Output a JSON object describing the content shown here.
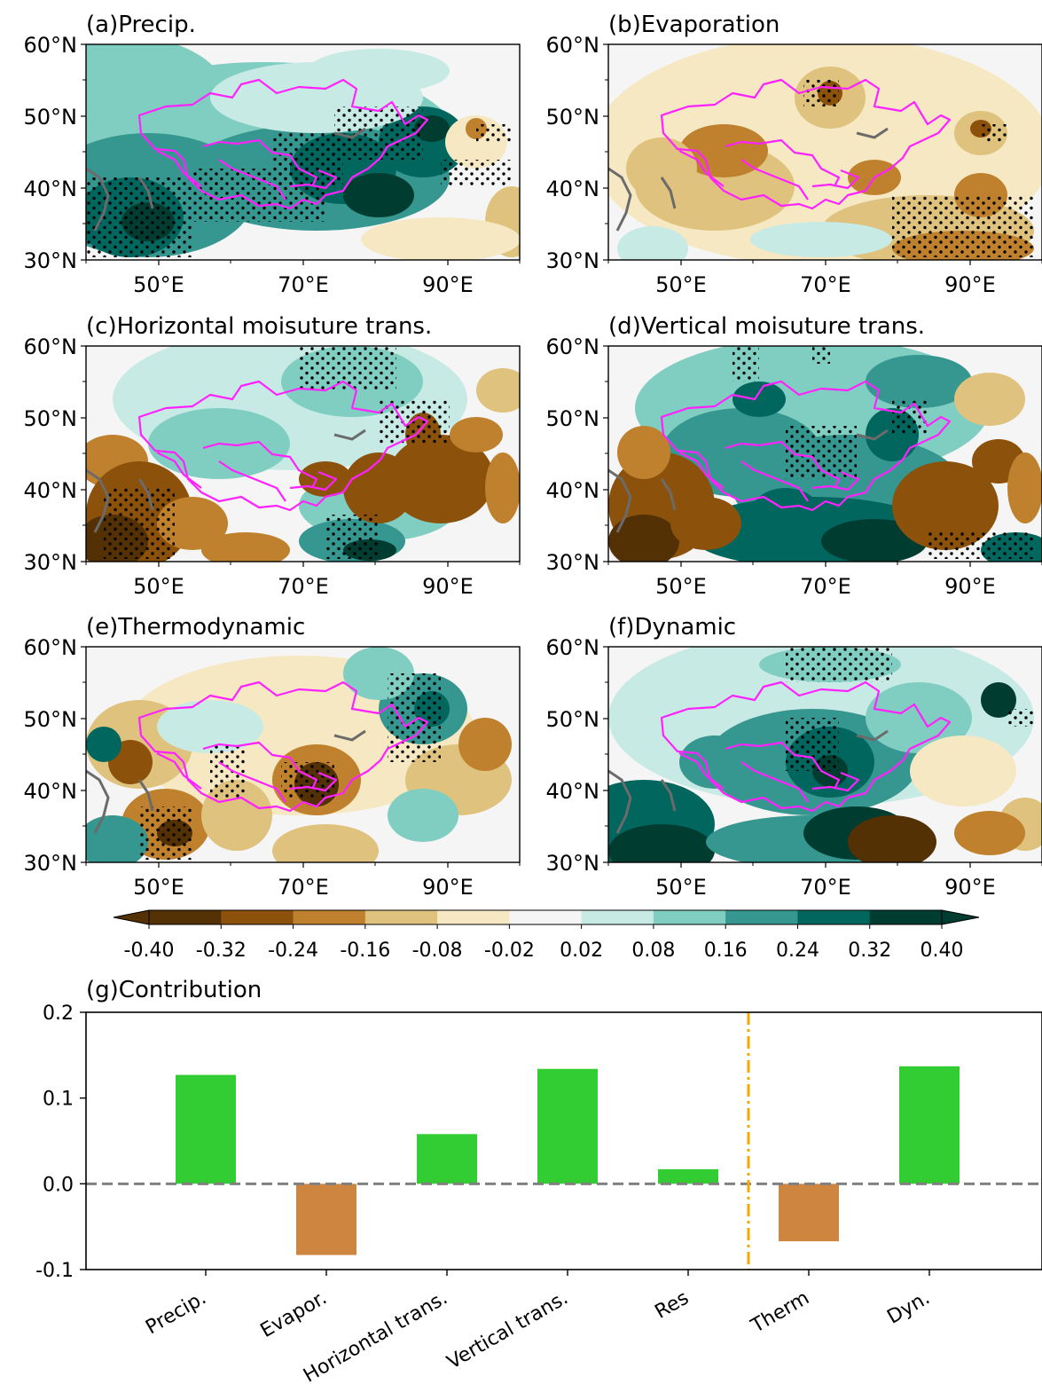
{
  "maps": {
    "lat_ticks": [
      "60°N",
      "50°N",
      "40°N",
      "30°N"
    ],
    "lon_ticks": [
      "50°E",
      "70°E",
      "90°E"
    ],
    "panels": [
      {
        "title": "(a)Precip.",
        "pattern": "precip"
      },
      {
        "title": "(b)Evaporation",
        "pattern": "evap"
      },
      {
        "title": "(c)Horizontal moisuture trans.",
        "pattern": "horiz"
      },
      {
        "title": "(d)Vertical moisuture trans.",
        "pattern": "vert"
      },
      {
        "title": "(e)Thermodynamic",
        "pattern": "thermo"
      },
      {
        "title": "(f)Dynamic",
        "pattern": "dyn"
      }
    ]
  },
  "colorbar": {
    "labels": [
      "-0.40",
      "-0.32",
      "-0.24",
      "-0.16",
      "-0.08",
      "-0.02",
      "0.02",
      "0.08",
      "0.16",
      "0.24",
      "0.32",
      "0.40"
    ],
    "colors": [
      "#543005",
      "#8c510a",
      "#bf812d",
      "#dfc27d",
      "#f6e8c3",
      "#f5f5f5",
      "#c7eae5",
      "#80cdc1",
      "#35978f",
      "#01665e",
      "#003c30"
    ]
  },
  "chart_data": {
    "type": "bar",
    "title": "(g)Contribution",
    "categories": [
      "Precip.",
      "Evapor.",
      "Horizontal trans.",
      "Vertical trans.",
      "Res",
      "Therm",
      "Dyn."
    ],
    "values": [
      0.127,
      -0.083,
      0.058,
      0.134,
      0.017,
      -0.067,
      0.137
    ],
    "ylim": [
      -0.1,
      0.2
    ],
    "yticks": [
      "0.2",
      "0.1",
      "0.0",
      "-0.1"
    ],
    "ytick_values": [
      0.2,
      0.1,
      0.0,
      -0.1
    ],
    "zero_line": {
      "style": "dashed",
      "color": "#808080"
    },
    "separator": {
      "after_category": "Res",
      "style": "dash-dot",
      "color": "#ffa500"
    },
    "colors": {
      "positive": "#32cd32",
      "negative": "#cd853f"
    }
  }
}
